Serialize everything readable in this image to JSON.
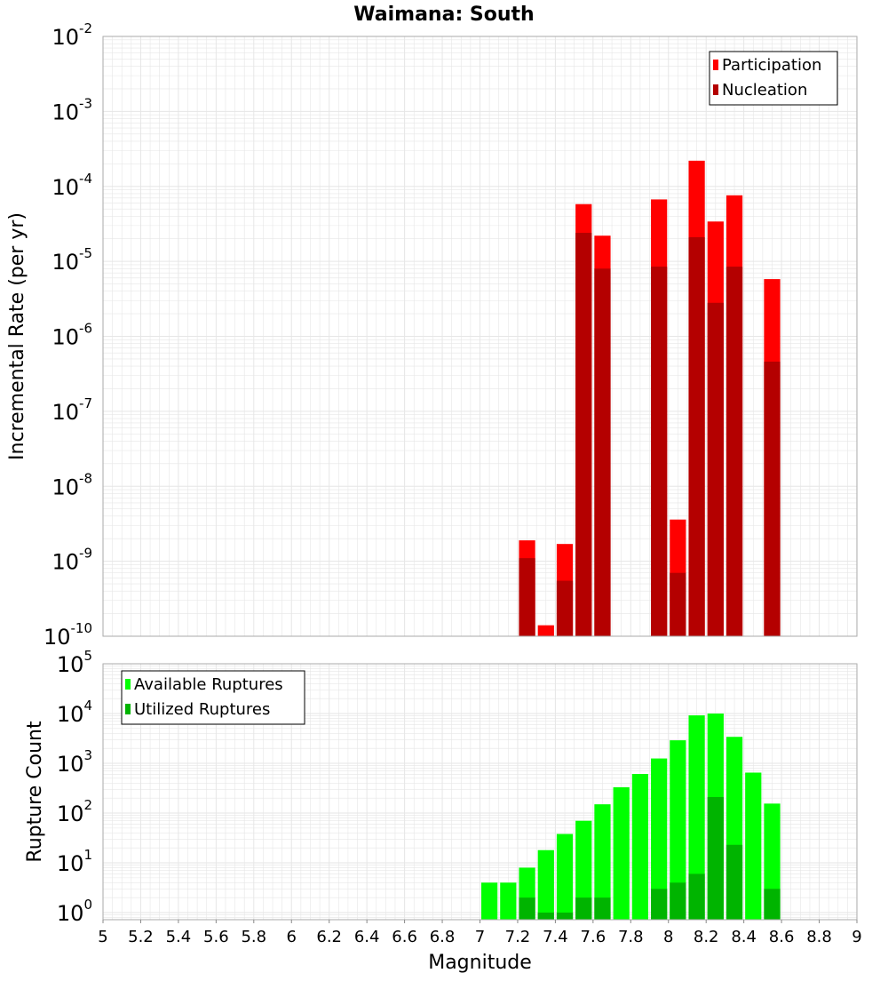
{
  "title": "Waimana: South",
  "colors": {
    "participation": "#ff0000",
    "nucleation": "#b40000",
    "available": "#00ff00",
    "utilized": "#00b400",
    "grid": "#e6e6e6",
    "plot_border": "#aaaaaa"
  },
  "chart_data": [
    {
      "type": "bar",
      "title": "Waimana: South",
      "xlabel": "Magnitude",
      "ylabel": "Incremental Rate (per yr)",
      "yscale": "log",
      "xlim": [
        5,
        9
      ],
      "ylim": [
        1e-10,
        0.01
      ],
      "y_tick_exponents": [
        -10,
        -9,
        -8,
        -7,
        -6,
        -5,
        -4,
        -3,
        -2
      ],
      "grid": true,
      "legend_position": "top-right",
      "bar_width": 0.1,
      "series": [
        {
          "name": "Participation",
          "color": "#ff0000",
          "points": [
            {
              "x": 7.25,
              "y": 1.9e-09
            },
            {
              "x": 7.35,
              "y": 1.4e-10
            },
            {
              "x": 7.45,
              "y": 1.7e-09
            },
            {
              "x": 7.55,
              "y": 5.8e-05
            },
            {
              "x": 7.65,
              "y": 2.2e-05
            },
            {
              "x": 7.95,
              "y": 6.7e-05
            },
            {
              "x": 8.05,
              "y": 3.6e-09
            },
            {
              "x": 8.15,
              "y": 0.00022
            },
            {
              "x": 8.25,
              "y": 3.4e-05
            },
            {
              "x": 8.35,
              "y": 7.6e-05
            },
            {
              "x": 8.55,
              "y": 5.8e-06
            }
          ]
        },
        {
          "name": "Nucleation",
          "color": "#b40000",
          "points": [
            {
              "x": 7.25,
              "y": 1.1e-09
            },
            {
              "x": 7.45,
              "y": 5.5e-10
            },
            {
              "x": 7.55,
              "y": 2.4e-05
            },
            {
              "x": 7.65,
              "y": 8e-06
            },
            {
              "x": 7.95,
              "y": 8.5e-06
            },
            {
              "x": 8.05,
              "y": 7e-10
            },
            {
              "x": 8.15,
              "y": 2.1e-05
            },
            {
              "x": 8.25,
              "y": 2.8e-06
            },
            {
              "x": 8.35,
              "y": 8.5e-06
            },
            {
              "x": 8.55,
              "y": 4.6e-07
            }
          ]
        }
      ]
    },
    {
      "type": "bar",
      "xlabel": "Magnitude",
      "ylabel": "Rupture Count",
      "yscale": "log",
      "xlim": [
        5,
        9
      ],
      "ylim": [
        0.72,
        100000
      ],
      "y_tick_exponents": [
        0,
        1,
        2,
        3,
        4,
        5
      ],
      "x_ticks": [
        "5",
        "5.2",
        "5.4",
        "5.6",
        "5.8",
        "6",
        "6.2",
        "6.4",
        "6.6",
        "6.8",
        "7",
        "7.2",
        "7.4",
        "7.6",
        "7.8",
        "8",
        "8.2",
        "8.4",
        "8.6",
        "8.8",
        "9"
      ],
      "grid": true,
      "legend_position": "top-left",
      "bar_width": 0.1,
      "series": [
        {
          "name": "Available Ruptures",
          "color": "#00ff00",
          "points": [
            {
              "x": 7.05,
              "y": 4
            },
            {
              "x": 7.15,
              "y": 4
            },
            {
              "x": 7.25,
              "y": 8
            },
            {
              "x": 7.35,
              "y": 18
            },
            {
              "x": 7.45,
              "y": 38
            },
            {
              "x": 7.55,
              "y": 70
            },
            {
              "x": 7.65,
              "y": 150
            },
            {
              "x": 7.75,
              "y": 330
            },
            {
              "x": 7.85,
              "y": 610
            },
            {
              "x": 7.95,
              "y": 1250
            },
            {
              "x": 8.05,
              "y": 2900
            },
            {
              "x": 8.15,
              "y": 9200
            },
            {
              "x": 8.25,
              "y": 10000
            },
            {
              "x": 8.35,
              "y": 3400
            },
            {
              "x": 8.45,
              "y": 650
            },
            {
              "x": 8.55,
              "y": 155
            }
          ]
        },
        {
          "name": "Utilized Ruptures",
          "color": "#00b400",
          "points": [
            {
              "x": 7.25,
              "y": 2
            },
            {
              "x": 7.35,
              "y": 1
            },
            {
              "x": 7.45,
              "y": 1
            },
            {
              "x": 7.55,
              "y": 2
            },
            {
              "x": 7.65,
              "y": 2
            },
            {
              "x": 7.95,
              "y": 3
            },
            {
              "x": 8.05,
              "y": 4
            },
            {
              "x": 8.15,
              "y": 6
            },
            {
              "x": 8.25,
              "y": 210
            },
            {
              "x": 8.35,
              "y": 23
            },
            {
              "x": 8.55,
              "y": 3
            }
          ]
        }
      ]
    }
  ]
}
